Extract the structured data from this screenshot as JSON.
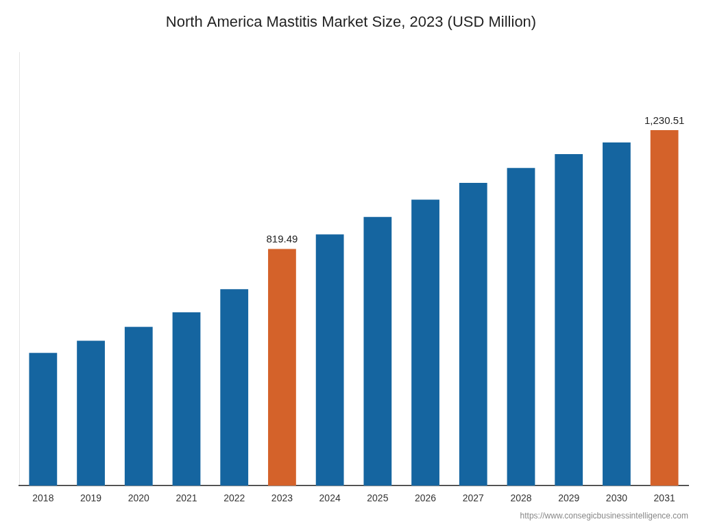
{
  "chart_data": {
    "type": "bar",
    "title": "North America Mastitis Market Size, 2023 (USD Million)",
    "categories": [
      "2018",
      "2019",
      "2020",
      "2021",
      "2022",
      "2023",
      "2024",
      "2025",
      "2026",
      "2027",
      "2028",
      "2029",
      "2030",
      "2031"
    ],
    "values": [
      460,
      502,
      550,
      600,
      680,
      819.49,
      870,
      930,
      990,
      1048,
      1100,
      1148,
      1188,
      1230.51
    ],
    "colors": [
      "#1565a0",
      "#1565a0",
      "#1565a0",
      "#1565a0",
      "#1565a0",
      "#d4622a",
      "#1565a0",
      "#1565a0",
      "#1565a0",
      "#1565a0",
      "#1565a0",
      "#1565a0",
      "#1565a0",
      "#d4622a"
    ],
    "data_labels": true,
    "value_labels": [
      null,
      null,
      null,
      null,
      null,
      "819.49",
      null,
      null,
      null,
      null,
      null,
      null,
      null,
      "1,230.51"
    ],
    "annotations": [
      "https://www.consegicbusinessintelligence.com"
    ],
    "ylim": [
      0,
      1500
    ],
    "grid": false,
    "tick_labels": "x"
  }
}
